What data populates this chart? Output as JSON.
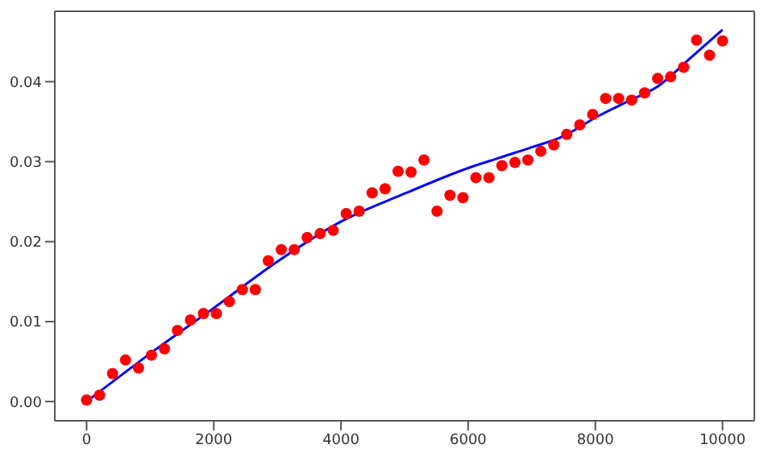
{
  "chart_data": {
    "type": "scatter",
    "xlim": [
      -500,
      10500
    ],
    "ylim": [
      -0.0024,
      0.0488
    ],
    "xticks": [
      0,
      2000,
      4000,
      6000,
      8000,
      10000
    ],
    "yticks": [
      {
        "value": 0,
        "label": "0.00"
      },
      {
        "value": 0.01,
        "label": "0.01"
      },
      {
        "value": 0.02,
        "label": "0.02"
      },
      {
        "value": 0.03,
        "label": "0.03"
      },
      {
        "value": 0.04,
        "label": "0.04"
      }
    ],
    "grid": false,
    "series": [
      {
        "type": "scatter",
        "marker": "circle",
        "color": "#ff0000",
        "x": [
          0,
          204,
          408,
          612,
          816,
          1020,
          1224,
          1429,
          1633,
          1837,
          2041,
          2245,
          2449,
          2653,
          2857,
          3061,
          3265,
          3469,
          3673,
          3878,
          4082,
          4286,
          4490,
          4694,
          4898,
          5102,
          5306,
          5510,
          5714,
          5918,
          6122,
          6327,
          6531,
          6735,
          6939,
          7143,
          7347,
          7551,
          7755,
          7959,
          8163,
          8367,
          8571,
          8776,
          8980,
          9184,
          9388,
          9592,
          9796,
          10000
        ],
        "values": [
          0.0002,
          0.0008,
          0.0035,
          0.0052,
          0.0042,
          0.0058,
          0.0066,
          0.0089,
          0.0102,
          0.011,
          0.011,
          0.0125,
          0.014,
          0.014,
          0.0176,
          0.019,
          0.019,
          0.0205,
          0.021,
          0.0214,
          0.0235,
          0.0238,
          0.0261,
          0.0266,
          0.0288,
          0.0287,
          0.0302,
          0.0238,
          0.0258,
          0.0255,
          0.028,
          0.028,
          0.0295,
          0.0299,
          0.0302,
          0.0313,
          0.0321,
          0.0334,
          0.0346,
          0.0359,
          0.0379,
          0.0379,
          0.0377,
          0.0386,
          0.0404,
          0.0406,
          0.0418,
          0.0452,
          0.0433,
          0.0451
        ]
      },
      {
        "type": "line",
        "marker": "none",
        "line_style": "solid",
        "color": "#0000ff",
        "x": [
          0,
          1000,
          2000,
          3000,
          4000,
          5000,
          6000,
          6500,
          7000,
          7500,
          8000,
          8500,
          9000,
          9500,
          10000
        ],
        "values": [
          0,
          0.006,
          0.0117,
          0.0175,
          0.0225,
          0.026,
          0.0292,
          0.0305,
          0.0318,
          0.0332,
          0.0355,
          0.0375,
          0.0395,
          0.043,
          0.0465
        ]
      }
    ]
  }
}
